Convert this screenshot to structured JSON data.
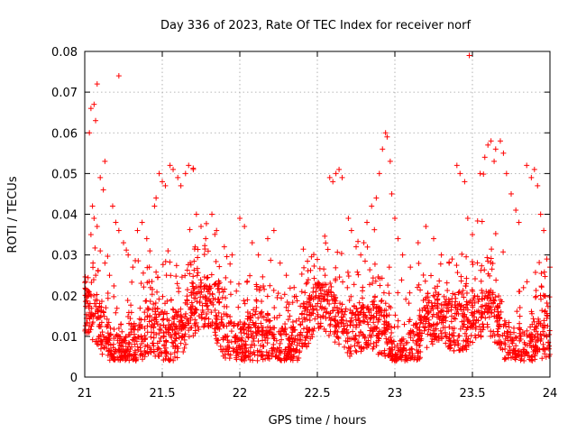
{
  "chart_data": {
    "type": "scatter",
    "title": "Day 336 of 2023, Rate Of TEC Index for receiver norf",
    "xlabel": "GPS time / hours",
    "ylabel": "ROTI / TECUs",
    "xlim": [
      21,
      24
    ],
    "ylim": [
      0,
      0.08
    ],
    "x_ticks": [
      "21",
      "21.5",
      "22",
      "22.5",
      "23",
      "23.5",
      "24"
    ],
    "y_ticks": [
      "0",
      "0.01",
      "0.02",
      "0.03",
      "0.04",
      "0.05",
      "0.06",
      "0.07",
      "0.08"
    ],
    "grid": true,
    "marker": "+",
    "series": [
      {
        "name": "ROTI",
        "color": "#ff0000",
        "points": [
          [
            21.03,
            0.06
          ],
          [
            21.04,
            0.066
          ],
          [
            21.06,
            0.067
          ],
          [
            21.07,
            0.063
          ],
          [
            21.08,
            0.072
          ],
          [
            21.22,
            0.074
          ],
          [
            21.13,
            0.053
          ],
          [
            21.12,
            0.046
          ],
          [
            21.1,
            0.049
          ],
          [
            21.05,
            0.042
          ],
          [
            21.06,
            0.039
          ],
          [
            21.08,
            0.037
          ],
          [
            21.04,
            0.035
          ],
          [
            21.1,
            0.031
          ],
          [
            21.13,
            0.028
          ],
          [
            21.16,
            0.025
          ],
          [
            21.18,
            0.042
          ],
          [
            21.2,
            0.038
          ],
          [
            21.22,
            0.036
          ],
          [
            21.25,
            0.033
          ],
          [
            21.28,
            0.03
          ],
          [
            21.31,
            0.027
          ],
          [
            21.34,
            0.036
          ],
          [
            21.37,
            0.038
          ],
          [
            21.4,
            0.034
          ],
          [
            21.42,
            0.031
          ],
          [
            21.45,
            0.042
          ],
          [
            21.46,
            0.044
          ],
          [
            21.48,
            0.05
          ],
          [
            21.5,
            0.048
          ],
          [
            21.52,
            0.047
          ],
          [
            21.55,
            0.052
          ],
          [
            21.57,
            0.051
          ],
          [
            21.6,
            0.049
          ],
          [
            21.62,
            0.047
          ],
          [
            21.65,
            0.05
          ],
          [
            21.67,
            0.052
          ],
          [
            21.7,
            0.051
          ],
          [
            21.72,
            0.04
          ],
          [
            21.75,
            0.037
          ],
          [
            21.78,
            0.034
          ],
          [
            21.82,
            0.04
          ],
          [
            21.85,
            0.036
          ],
          [
            21.9,
            0.032
          ],
          [
            21.95,
            0.03
          ],
          [
            22.0,
            0.039
          ],
          [
            22.03,
            0.037
          ],
          [
            22.08,
            0.033
          ],
          [
            22.12,
            0.03
          ],
          [
            22.18,
            0.034
          ],
          [
            22.22,
            0.036
          ],
          [
            22.26,
            0.028
          ],
          [
            22.3,
            0.025
          ],
          [
            22.35,
            0.022
          ],
          [
            22.4,
            0.021
          ],
          [
            22.45,
            0.02
          ],
          [
            22.5,
            0.023
          ],
          [
            22.55,
            0.025
          ],
          [
            22.58,
            0.049
          ],
          [
            22.6,
            0.048
          ],
          [
            22.62,
            0.05
          ],
          [
            22.64,
            0.051
          ],
          [
            22.66,
            0.049
          ],
          [
            22.7,
            0.039
          ],
          [
            22.72,
            0.036
          ],
          [
            22.75,
            0.032
          ],
          [
            22.78,
            0.03
          ],
          [
            22.8,
            0.033
          ],
          [
            22.82,
            0.038
          ],
          [
            22.85,
            0.042
          ],
          [
            22.88,
            0.044
          ],
          [
            22.9,
            0.05
          ],
          [
            22.92,
            0.056
          ],
          [
            22.94,
            0.06
          ],
          [
            22.95,
            0.059
          ],
          [
            22.97,
            0.053
          ],
          [
            22.98,
            0.045
          ],
          [
            23.0,
            0.039
          ],
          [
            23.02,
            0.034
          ],
          [
            23.05,
            0.03
          ],
          [
            23.1,
            0.027
          ],
          [
            23.15,
            0.033
          ],
          [
            23.2,
            0.037
          ],
          [
            23.25,
            0.034
          ],
          [
            23.3,
            0.03
          ],
          [
            23.35,
            0.028
          ],
          [
            23.4,
            0.052
          ],
          [
            23.42,
            0.05
          ],
          [
            23.45,
            0.048
          ],
          [
            23.47,
            0.039
          ],
          [
            23.48,
            0.079
          ],
          [
            23.5,
            0.035
          ],
          [
            23.55,
            0.05
          ],
          [
            23.58,
            0.054
          ],
          [
            23.6,
            0.057
          ],
          [
            23.62,
            0.058
          ],
          [
            23.64,
            0.053
          ],
          [
            23.65,
            0.056
          ],
          [
            23.68,
            0.058
          ],
          [
            23.7,
            0.055
          ],
          [
            23.72,
            0.05
          ],
          [
            23.75,
            0.045
          ],
          [
            23.78,
            0.041
          ],
          [
            23.8,
            0.038
          ],
          [
            23.85,
            0.052
          ],
          [
            23.88,
            0.049
          ],
          [
            23.9,
            0.051
          ],
          [
            23.92,
            0.047
          ],
          [
            23.94,
            0.04
          ],
          [
            23.96,
            0.036
          ],
          [
            23.98,
            0.029
          ],
          [
            24.0,
            0.027
          ]
        ]
      }
    ]
  }
}
